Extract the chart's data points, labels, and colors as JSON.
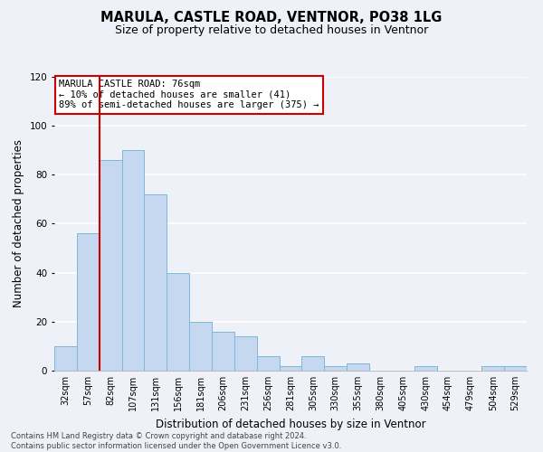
{
  "title": "MARULA, CASTLE ROAD, VENTNOR, PO38 1LG",
  "subtitle": "Size of property relative to detached houses in Ventnor",
  "xlabel": "Distribution of detached houses by size in Ventnor",
  "ylabel": "Number of detached properties",
  "categories": [
    "32sqm",
    "57sqm",
    "82sqm",
    "107sqm",
    "131sqm",
    "156sqm",
    "181sqm",
    "206sqm",
    "231sqm",
    "256sqm",
    "281sqm",
    "305sqm",
    "330sqm",
    "355sqm",
    "380sqm",
    "405sqm",
    "430sqm",
    "454sqm",
    "479sqm",
    "504sqm",
    "529sqm"
  ],
  "values": [
    10,
    56,
    86,
    90,
    72,
    40,
    20,
    16,
    14,
    6,
    2,
    6,
    2,
    3,
    0,
    0,
    2,
    0,
    0,
    2,
    2
  ],
  "bar_color": "#c5d8f0",
  "bar_edge_color": "#7db8d8",
  "vline_color": "#cc0000",
  "vline_index": 2,
  "ylim": [
    0,
    120
  ],
  "yticks": [
    0,
    20,
    40,
    60,
    80,
    100,
    120
  ],
  "annotation_title": "MARULA CASTLE ROAD: 76sqm",
  "annotation_line1": "← 10% of detached houses are smaller (41)",
  "annotation_line2": "89% of semi-detached houses are larger (375) →",
  "annotation_box_facecolor": "#ffffff",
  "annotation_box_edgecolor": "#cc0000",
  "footer_line1": "Contains HM Land Registry data © Crown copyright and database right 2024.",
  "footer_line2": "Contains public sector information licensed under the Open Government Licence v3.0.",
  "background_color": "#eef2f8",
  "plot_background": "#eef2f8",
  "grid_color": "#ffffff",
  "title_fontsize": 10.5,
  "subtitle_fontsize": 9,
  "ylabel_fontsize": 8.5,
  "xlabel_fontsize": 8.5,
  "tick_fontsize": 7,
  "footer_fontsize": 6,
  "annotation_fontsize": 7.5
}
